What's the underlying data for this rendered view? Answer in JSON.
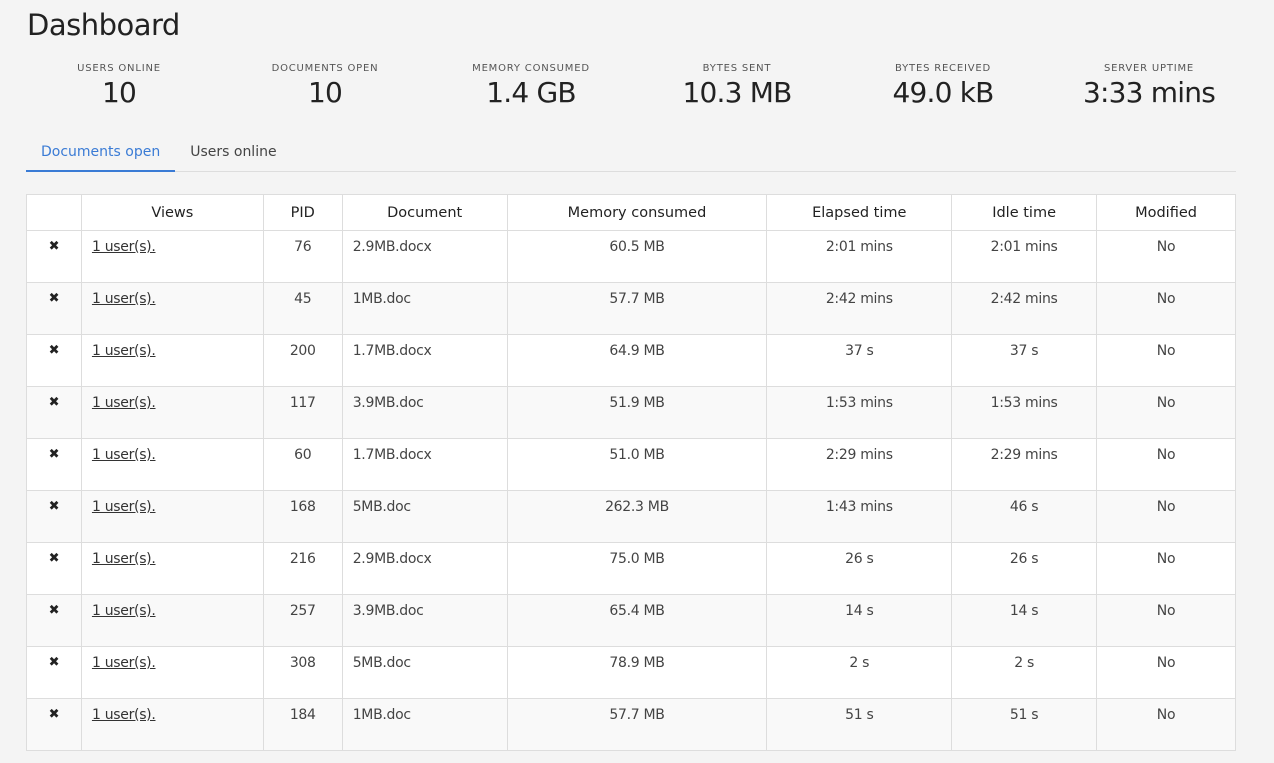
{
  "title": "Dashboard",
  "stats": [
    {
      "label": "USERS ONLINE",
      "value": "10"
    },
    {
      "label": "DOCUMENTS OPEN",
      "value": "10"
    },
    {
      "label": "MEMORY CONSUMED",
      "value": "1.4 GB"
    },
    {
      "label": "BYTES SENT",
      "value": "10.3 MB"
    },
    {
      "label": "BYTES RECEIVED",
      "value": "49.0 kB"
    },
    {
      "label": "SERVER UPTIME",
      "value": "3:33 mins"
    }
  ],
  "tabs": [
    {
      "label": "Documents open",
      "active": true
    },
    {
      "label": "Users online",
      "active": false
    }
  ],
  "table": {
    "headers": [
      "",
      "Views",
      "PID",
      "Document",
      "Memory consumed",
      "Elapsed time",
      "Idle time",
      "Modified"
    ],
    "close_icon": "✖",
    "rows": [
      {
        "views": "1 user(s).",
        "pid": "76",
        "document": "2.9MB.docx",
        "memory": "60.5 MB",
        "elapsed": "2:01 mins",
        "idle": "2:01 mins",
        "modified": "No"
      },
      {
        "views": "1 user(s).",
        "pid": "45",
        "document": "1MB.doc",
        "memory": "57.7 MB",
        "elapsed": "2:42 mins",
        "idle": "2:42 mins",
        "modified": "No"
      },
      {
        "views": "1 user(s).",
        "pid": "200",
        "document": "1.7MB.docx",
        "memory": "64.9 MB",
        "elapsed": "37 s",
        "idle": "37 s",
        "modified": "No"
      },
      {
        "views": "1 user(s).",
        "pid": "117",
        "document": "3.9MB.doc",
        "memory": "51.9 MB",
        "elapsed": "1:53 mins",
        "idle": "1:53 mins",
        "modified": "No"
      },
      {
        "views": "1 user(s).",
        "pid": "60",
        "document": "1.7MB.docx",
        "memory": "51.0 MB",
        "elapsed": "2:29 mins",
        "idle": "2:29 mins",
        "modified": "No"
      },
      {
        "views": "1 user(s).",
        "pid": "168",
        "document": "5MB.doc",
        "memory": "262.3 MB",
        "elapsed": "1:43 mins",
        "idle": "46 s",
        "modified": "No"
      },
      {
        "views": "1 user(s).",
        "pid": "216",
        "document": "2.9MB.docx",
        "memory": "75.0 MB",
        "elapsed": "26 s",
        "idle": "26 s",
        "modified": "No"
      },
      {
        "views": "1 user(s).",
        "pid": "257",
        "document": "3.9MB.doc",
        "memory": "65.4 MB",
        "elapsed": "14 s",
        "idle": "14 s",
        "modified": "No"
      },
      {
        "views": "1 user(s).",
        "pid": "308",
        "document": "5MB.doc",
        "memory": "78.9 MB",
        "elapsed": "2 s",
        "idle": "2 s",
        "modified": "No"
      },
      {
        "views": "1 user(s).",
        "pid": "184",
        "document": "1MB.doc",
        "memory": "57.7 MB",
        "elapsed": "51 s",
        "idle": "51 s",
        "modified": "No"
      }
    ]
  }
}
